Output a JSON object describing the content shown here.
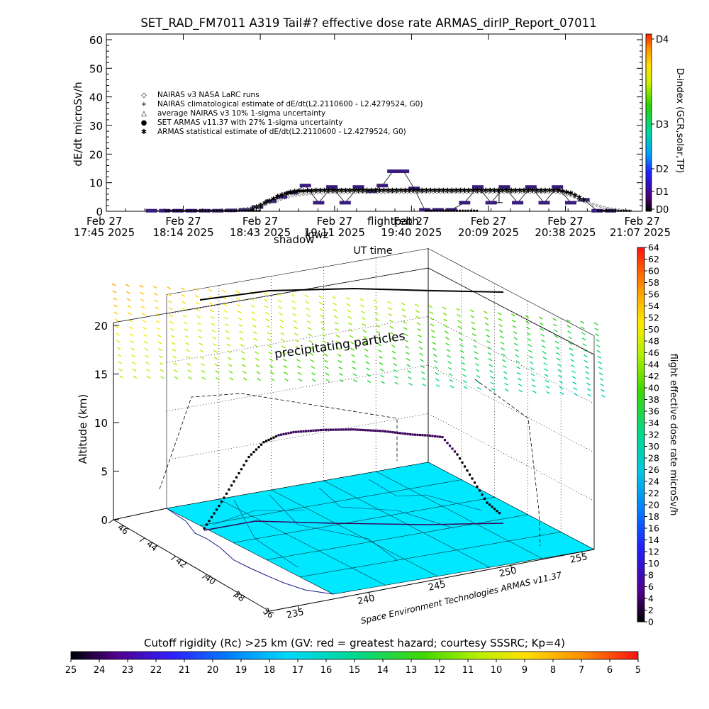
{
  "title": "SET_RAD_FM7011  A319 Tail#? effective dose rate ARMAS_dirIP_Report_07011",
  "colors": {
    "plot_line": "#3a005a",
    "marker": "#3a1c7c",
    "dark_violet": "#2a0060",
    "ground": "#00e8ff",
    "text": "#000000"
  },
  "chart_data": [
    {
      "type": "line",
      "title": "SET_RAD_FM7011  A319 Tail#? effective dose rate ARMAS_dirIP_Report_07011",
      "ylabel": "dE/dt microSv/h",
      "xlabel": "UT time",
      "ylim": [
        0,
        60
      ],
      "yticks": [
        "0",
        "10",
        "20",
        "30",
        "40",
        "50",
        "60"
      ],
      "xlim_minutes_from_1745": [
        0,
        202
      ],
      "xtick_labels": [
        [
          "Feb 27",
          "17:45 2025"
        ],
        [
          "Feb 27",
          "18:14 2025"
        ],
        [
          "Feb 27",
          "18:43 2025"
        ],
        [
          "Feb 27",
          "19:11 2025"
        ],
        [
          "Feb 27",
          "19:40 2025"
        ],
        [
          "Feb 27",
          "20:09 2025"
        ],
        [
          "Feb 27",
          "20:38 2025"
        ],
        [
          "Feb 27",
          "21:07 2025"
        ]
      ],
      "xtick_minutes": [
        0,
        29,
        58,
        86,
        115,
        144,
        173,
        202
      ],
      "legend": [
        {
          "symbol": "◇",
          "text": "NAIRAS v3 NASA LaRC runs"
        },
        {
          "symbol": "+",
          "text": "NAIRAS climatological estimate of dE/dt(L2.2110600 - L2.4279524, G0)"
        },
        {
          "symbol": "△",
          "text": "average NAIRAS v3 10% 1-sigma uncertainty"
        },
        {
          "symbol": "●",
          "text": "SET ARMAS v11.37 with 27% 1-sigma uncertainty"
        },
        {
          "symbol": "✱",
          "text": "ARMAS statistical estimate of dE/dt(L2.2110600 - L2.4279524, G0)"
        }
      ],
      "right_axis_label": "D-index (GCR,solar,TP)",
      "right_axis_ticks": [
        "D0",
        "D1",
        "D2",
        "D3",
        "D4"
      ],
      "overlay_text": [
        "flightpath",
        "shadow",
        "lowz"
      ],
      "series": [
        {
          "name": "SET ARMAS v11.37 with 27% 1-sigma uncertainty",
          "x": [
            17,
            22,
            27,
            32,
            37,
            42,
            47,
            52,
            57,
            62,
            66,
            70,
            75,
            80,
            85,
            90,
            95,
            100,
            104,
            108,
            112,
            116,
            120,
            125,
            130,
            135,
            140,
            145,
            150,
            155,
            160,
            165,
            170,
            175,
            180,
            185,
            190
          ],
          "y": [
            0.2,
            0.2,
            0.2,
            0.2,
            0.2,
            0.2,
            0.3,
            0.5,
            1.5,
            3.5,
            5.0,
            6.5,
            9.0,
            3.0,
            8.5,
            3.0,
            8.5,
            7.0,
            9.0,
            14.0,
            14.0,
            8.0,
            0.5,
            0.5,
            0.5,
            3.0,
            8.5,
            3.0,
            8.5,
            3.0,
            8.5,
            3.0,
            8.5,
            3.0,
            4.0,
            0.2,
            0.2
          ]
        },
        {
          "name": "ARMAS statistical estimate of dE/dt(L2.2110600 - L2.4279524, G0)",
          "x": [
            55,
            60,
            65,
            70,
            80,
            90,
            100,
            110,
            120,
            130,
            140,
            150,
            160,
            170,
            175,
            180
          ],
          "y": [
            1.0,
            3.0,
            5.5,
            7.0,
            7.5,
            7.5,
            7.5,
            7.5,
            7.5,
            7.5,
            7.5,
            7.5,
            7.5,
            7.5,
            6.5,
            4.0
          ]
        },
        {
          "name": "NAIRAS v3 NASA LaRC runs",
          "x": [
            35,
            40,
            45,
            50,
            55,
            60,
            65,
            70,
            80,
            90,
            100,
            110,
            120,
            130,
            140,
            150,
            160,
            170,
            175,
            180,
            185,
            190,
            195
          ],
          "y": [
            0.1,
            0.2,
            0.3,
            0.6,
            1.2,
            2.5,
            4.0,
            5.5,
            6.5,
            6.5,
            6.6,
            6.6,
            6.6,
            6.6,
            6.6,
            6.6,
            6.6,
            6.6,
            5.5,
            3.5,
            2.0,
            0.8,
            0.3
          ]
        }
      ]
    },
    {
      "type": "scatter",
      "title": "",
      "zlabel": "Altitude (km)",
      "zticks": [
        "0",
        "5",
        "10",
        "15",
        "20"
      ],
      "lat_ticks": [
        "36",
        "38",
        "40",
        "42",
        "44",
        "46"
      ],
      "lon_ticks": [
        "235",
        "240",
        "245",
        "250",
        "255"
      ],
      "annotation": "precipitating particles",
      "credit": "Space Environment Technologies ARMAS v11.37",
      "colorbar_label": "flight effective dose rate microSv/h",
      "colorbar_ticks": [
        "0",
        "2",
        "4",
        "6",
        "8",
        "10",
        "12",
        "14",
        "16",
        "18",
        "20",
        "22",
        "24",
        "26",
        "28",
        "30",
        "32",
        "34",
        "36",
        "38",
        "40",
        "42",
        "44",
        "46",
        "48",
        "50",
        "52",
        "54",
        "56",
        "58",
        "60",
        "62",
        "64"
      ],
      "colorbar_range": [
        0,
        64
      ],
      "flight_altitude_profile_km": [
        0.2,
        2.5,
        5.0,
        7.5,
        9.0,
        9.7,
        10.0,
        10.1,
        10.2,
        10.2,
        10.2,
        10.1,
        10.0,
        9.8,
        9.6,
        9.5,
        9.3,
        7.5,
        5.0,
        2.5,
        1.2
      ]
    }
  ],
  "rigidity_bar": {
    "label": "Cutoff rigidity (Rc) >25 km (GV: red = greatest hazard; courtesy SSSRC; Kp=4)",
    "ticks": [
      "25",
      "24",
      "23",
      "22",
      "21",
      "20",
      "19",
      "18",
      "17",
      "16",
      "15",
      "14",
      "13",
      "12",
      "11",
      "10",
      "9",
      "8",
      "7",
      "6",
      "5"
    ]
  }
}
